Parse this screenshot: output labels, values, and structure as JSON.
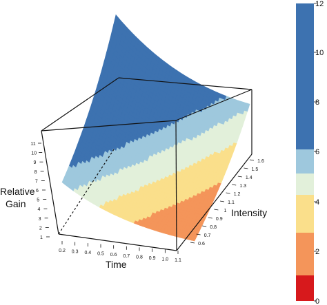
{
  "chart_data": {
    "type": "surface3d",
    "axes": {
      "x": {
        "label": "Time",
        "range": [
          0.2,
          1.2
        ],
        "ticks": [
          "0.2",
          "0.3",
          "0.4",
          "0.5",
          "0.6",
          "0.7",
          "0.8",
          "0.9",
          "1.0",
          "1.1"
        ]
      },
      "y": {
        "label": "Intensity",
        "range": [
          0.6,
          1.6
        ],
        "ticks": [
          "0.6",
          "0.7",
          "0.8",
          "0.9",
          "1",
          "1.1",
          "1.2",
          "1.3",
          "1.4",
          "1.5",
          "1.6"
        ]
      },
      "z": {
        "label_lines": [
          "Relative",
          "Gain"
        ],
        "range": [
          1,
          12
        ],
        "ticks": [
          "1",
          "2",
          "3",
          "4",
          "5",
          "6",
          "7",
          "8",
          "9",
          "10",
          "11"
        ]
      }
    },
    "colorbar": {
      "ticks": [
        "0",
        "2",
        "4",
        "6",
        "8",
        "10",
        "12"
      ],
      "levels": [
        0,
        1,
        2,
        3,
        4,
        5,
        12
      ],
      "colors": [
        "#d7191c",
        "#f4955a",
        "#fadf8b",
        "#e2f0da",
        "#9ec8dd",
        "#3d72b0"
      ]
    },
    "surface": {
      "description_values": "Relative Gain rises from about 1 at (Time 1.2, Intensity 0.6) to about 12 at (Time 0.2, Intensity 1.6)",
      "corner_values": {
        "t0.2_i0.6": 4.5,
        "t1.2_i0.6": 1.0,
        "t0.2_i1.6": 12.0,
        "t1.2_i1.6": 4.2
      }
    }
  }
}
